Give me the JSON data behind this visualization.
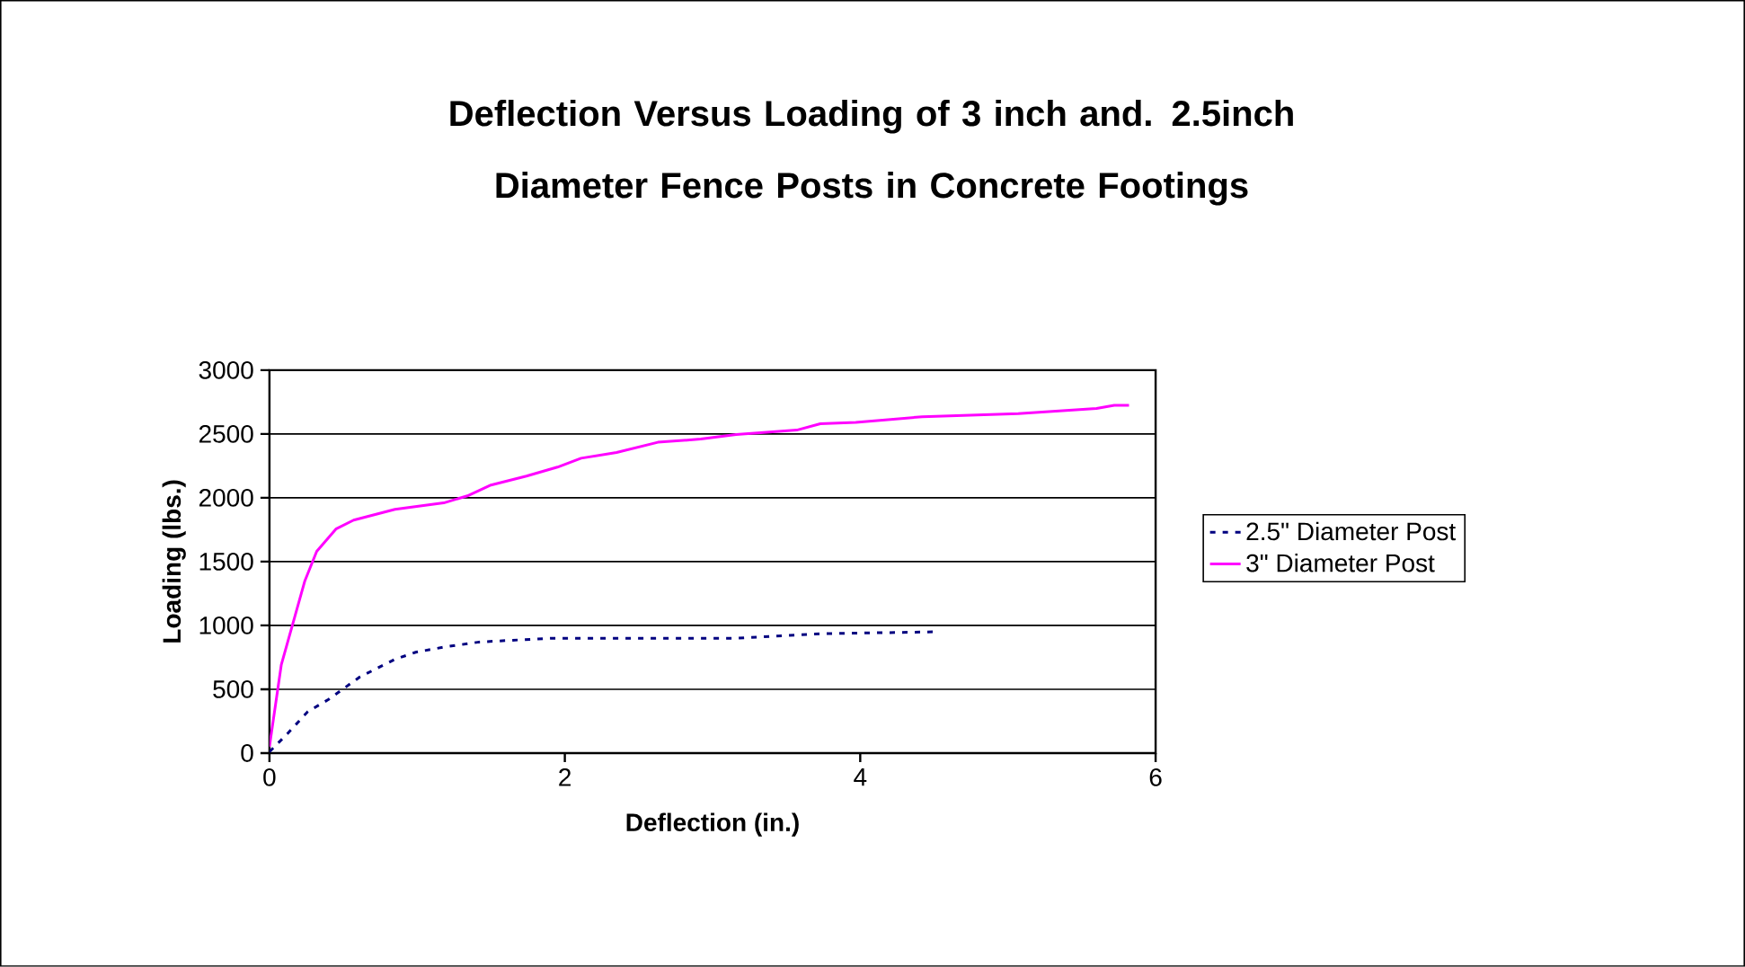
{
  "chart_data": {
    "type": "line",
    "title": "Deflection Versus Loading of 3 inch and. 2.5inch Diameter Fence Posts in Concrete Footings",
    "xlabel": "Deflection (in.)",
    "ylabel": "Loading (lbs.)",
    "xlim": [
      0,
      6
    ],
    "xticks": [
      0,
      2,
      4,
      6
    ],
    "ylim": [
      0,
      3000
    ],
    "yticks": [
      0,
      500,
      1000,
      1500,
      2000,
      2500,
      3000
    ],
    "grid": "y",
    "legend": "right",
    "marker": "none",
    "series": [
      {
        "name": "2.5\" Diameter Post",
        "color": "#000080",
        "line_style": "dashed",
        "x": [
          0,
          0.12,
          0.26,
          0.4,
          0.61,
          0.85,
          0.99,
          1.18,
          1.42,
          1.91,
          3.02,
          3.16,
          3.73,
          4.52
        ],
        "values": [
          10,
          150,
          325,
          420,
          595,
          735,
          790,
          830,
          870,
          900,
          900,
          900,
          935,
          950
        ]
      },
      {
        "name": "3\" Diameter Post",
        "color": "#ff00ff",
        "line_style": "solid",
        "x": [
          0,
          0.08,
          0.16,
          0.24,
          0.32,
          0.45,
          0.57,
          0.85,
          1.18,
          1.34,
          1.5,
          1.74,
          1.95,
          2.11,
          2.35,
          2.63,
          2.92,
          3.16,
          3.57,
          3.73,
          3.97,
          4.42,
          5.07,
          5.6,
          5.72,
          5.82
        ],
        "values": [
          50,
          690,
          1020,
          1350,
          1580,
          1755,
          1825,
          1910,
          1960,
          2015,
          2100,
          2170,
          2240,
          2310,
          2355,
          2435,
          2460,
          2495,
          2530,
          2580,
          2590,
          2635,
          2660,
          2700,
          2725,
          2725
        ]
      }
    ]
  }
}
